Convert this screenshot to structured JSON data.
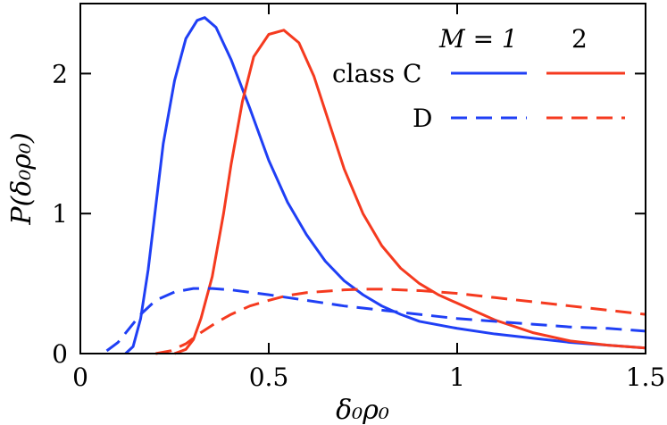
{
  "chart_data": {
    "type": "line",
    "xlabel": "δ₀ρ₀",
    "ylabel": "P(δ₀ρ₀)",
    "xlim": [
      0,
      1.5
    ],
    "ylim": [
      0,
      2.5
    ],
    "xticks": [
      {
        "value": 0,
        "label": "0"
      },
      {
        "value": 0.5,
        "label": "0.5"
      },
      {
        "value": 1,
        "label": "1"
      },
      {
        "value": 1.5,
        "label": "1.5"
      }
    ],
    "yticks": [
      {
        "value": 0,
        "label": "0"
      },
      {
        "value": 1,
        "label": "1"
      },
      {
        "value": 2,
        "label": "2"
      }
    ],
    "legend": {
      "header_m": "M = 1",
      "header_2": "2",
      "row_c": "class  C",
      "row_d": "D"
    },
    "colors": {
      "M1": "#1f3ff5",
      "M2": "#f53a1f"
    },
    "series": [
      {
        "class": "C",
        "M": 1,
        "color": "#1f3ff5",
        "dash": "solid",
        "x": [
          0.12,
          0.14,
          0.16,
          0.18,
          0.2,
          0.22,
          0.25,
          0.28,
          0.31,
          0.33,
          0.36,
          0.4,
          0.45,
          0.5,
          0.55,
          0.6,
          0.65,
          0.7,
          0.75,
          0.8,
          0.85,
          0.9,
          1.0,
          1.1,
          1.2,
          1.3,
          1.4,
          1.5
        ],
        "y": [
          0.0,
          0.05,
          0.25,
          0.6,
          1.05,
          1.5,
          1.95,
          2.25,
          2.38,
          2.4,
          2.33,
          2.1,
          1.75,
          1.38,
          1.08,
          0.85,
          0.66,
          0.52,
          0.42,
          0.34,
          0.28,
          0.23,
          0.18,
          0.14,
          0.11,
          0.08,
          0.06,
          0.04
        ]
      },
      {
        "class": "C",
        "M": 2,
        "color": "#f53a1f",
        "dash": "solid",
        "x": [
          0.25,
          0.28,
          0.3,
          0.32,
          0.35,
          0.38,
          0.4,
          0.43,
          0.46,
          0.5,
          0.54,
          0.58,
          0.62,
          0.66,
          0.7,
          0.75,
          0.8,
          0.85,
          0.9,
          0.95,
          1.0,
          1.05,
          1.1,
          1.2,
          1.3,
          1.4,
          1.5
        ],
        "y": [
          0.0,
          0.03,
          0.1,
          0.25,
          0.55,
          1.0,
          1.35,
          1.8,
          2.12,
          2.28,
          2.31,
          2.22,
          1.98,
          1.65,
          1.32,
          1.0,
          0.77,
          0.61,
          0.5,
          0.42,
          0.36,
          0.3,
          0.24,
          0.15,
          0.09,
          0.06,
          0.04
        ]
      },
      {
        "class": "D",
        "M": 1,
        "color": "#1f3ff5",
        "dash": "dashed",
        "x": [
          0.07,
          0.1,
          0.13,
          0.16,
          0.2,
          0.25,
          0.3,
          0.35,
          0.4,
          0.5,
          0.6,
          0.7,
          0.8,
          0.9,
          1.0,
          1.1,
          1.2,
          1.3,
          1.4,
          1.5
        ],
        "y": [
          0.02,
          0.08,
          0.18,
          0.28,
          0.38,
          0.44,
          0.465,
          0.465,
          0.455,
          0.42,
          0.38,
          0.34,
          0.31,
          0.28,
          0.25,
          0.23,
          0.21,
          0.19,
          0.18,
          0.16
        ]
      },
      {
        "class": "D",
        "M": 2,
        "color": "#f53a1f",
        "dash": "dashed",
        "x": [
          0.2,
          0.24,
          0.28,
          0.32,
          0.36,
          0.4,
          0.45,
          0.5,
          0.55,
          0.6,
          0.65,
          0.7,
          0.75,
          0.8,
          0.9,
          1.0,
          1.1,
          1.2,
          1.3,
          1.4,
          1.5
        ],
        "y": [
          0.0,
          0.02,
          0.07,
          0.15,
          0.22,
          0.28,
          0.34,
          0.38,
          0.415,
          0.435,
          0.445,
          0.455,
          0.46,
          0.46,
          0.45,
          0.43,
          0.4,
          0.37,
          0.34,
          0.31,
          0.28
        ]
      }
    ]
  }
}
